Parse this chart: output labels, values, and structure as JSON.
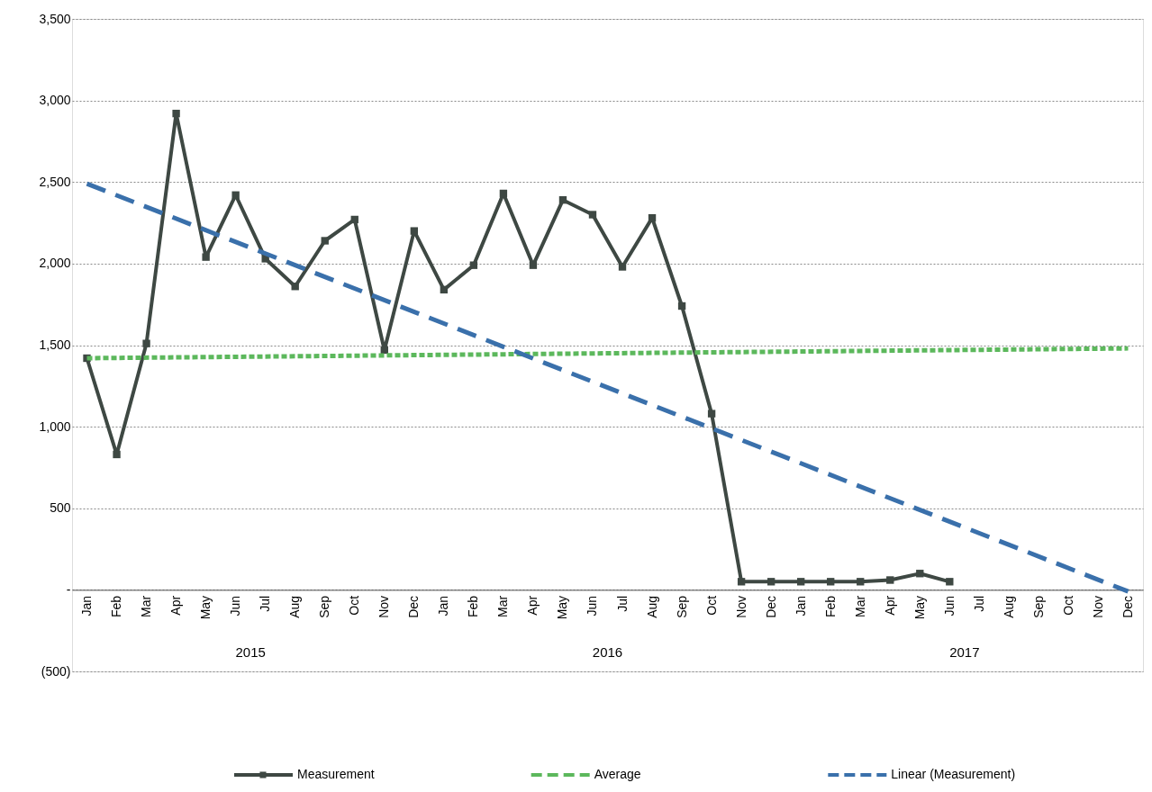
{
  "chart_data": {
    "type": "line",
    "categories": [
      "Jan",
      "Feb",
      "Mar",
      "Apr",
      "May",
      "Jun",
      "Jul",
      "Aug",
      "Sep",
      "Oct",
      "Nov",
      "Dec",
      "Jan",
      "Feb",
      "Mar",
      "Apr",
      "May",
      "Jun",
      "Jul",
      "Aug",
      "Sep",
      "Oct",
      "Nov",
      "Dec",
      "Jan",
      "Feb",
      "Mar",
      "Apr",
      "May",
      "Jun",
      "Jul",
      "Aug",
      "Sep",
      "Oct",
      "Nov",
      "Dec"
    ],
    "series": [
      {
        "name": "Measurement",
        "color": "#3e4843",
        "marker": "square",
        "line_style": "solid",
        "values": [
          1420,
          830,
          1510,
          2920,
          2040,
          2420,
          2030,
          1860,
          2140,
          2270,
          1470,
          2200,
          1840,
          1990,
          2430,
          1990,
          2390,
          2300,
          1980,
          2280,
          1740,
          1080,
          50,
          50,
          50,
          50,
          50,
          60,
          100,
          50,
          null,
          null,
          null,
          null,
          null,
          null
        ]
      },
      {
        "name": "Average",
        "color": "#5cb85c",
        "marker": "none",
        "line_style": "dotted",
        "values": [
          1420,
          null,
          null,
          null,
          null,
          null,
          null,
          null,
          null,
          null,
          null,
          null,
          null,
          null,
          null,
          null,
          null,
          null,
          null,
          null,
          null,
          null,
          null,
          null,
          null,
          null,
          null,
          null,
          null,
          null,
          null,
          null,
          null,
          null,
          null,
          1480
        ]
      },
      {
        "name": "Linear (Measurement)",
        "color": "#3a70ab",
        "marker": "none",
        "line_style": "dashed",
        "values": [
          2490,
          null,
          null,
          null,
          null,
          null,
          null,
          null,
          null,
          null,
          null,
          null,
          null,
          null,
          null,
          null,
          null,
          null,
          null,
          null,
          null,
          null,
          null,
          null,
          null,
          null,
          null,
          null,
          null,
          null,
          null,
          null,
          null,
          null,
          null,
          -10
        ]
      }
    ],
    "ylim": [
      -500,
      3500
    ],
    "yticks": [
      {
        "value": -500,
        "label": "(500)"
      },
      {
        "value": 0,
        "label": "-"
      },
      {
        "value": 500,
        "label": "500"
      },
      {
        "value": 1000,
        "label": "1,000"
      },
      {
        "value": 1500,
        "label": "1,500"
      },
      {
        "value": 2000,
        "label": "2,000"
      },
      {
        "value": 2500,
        "label": "2,500"
      },
      {
        "value": 3000,
        "label": "3,000"
      },
      {
        "value": 3500,
        "label": "3,500"
      }
    ],
    "grid": "y",
    "legend": "bottom",
    "annotations": [
      "2015",
      "2016",
      "2017"
    ]
  }
}
